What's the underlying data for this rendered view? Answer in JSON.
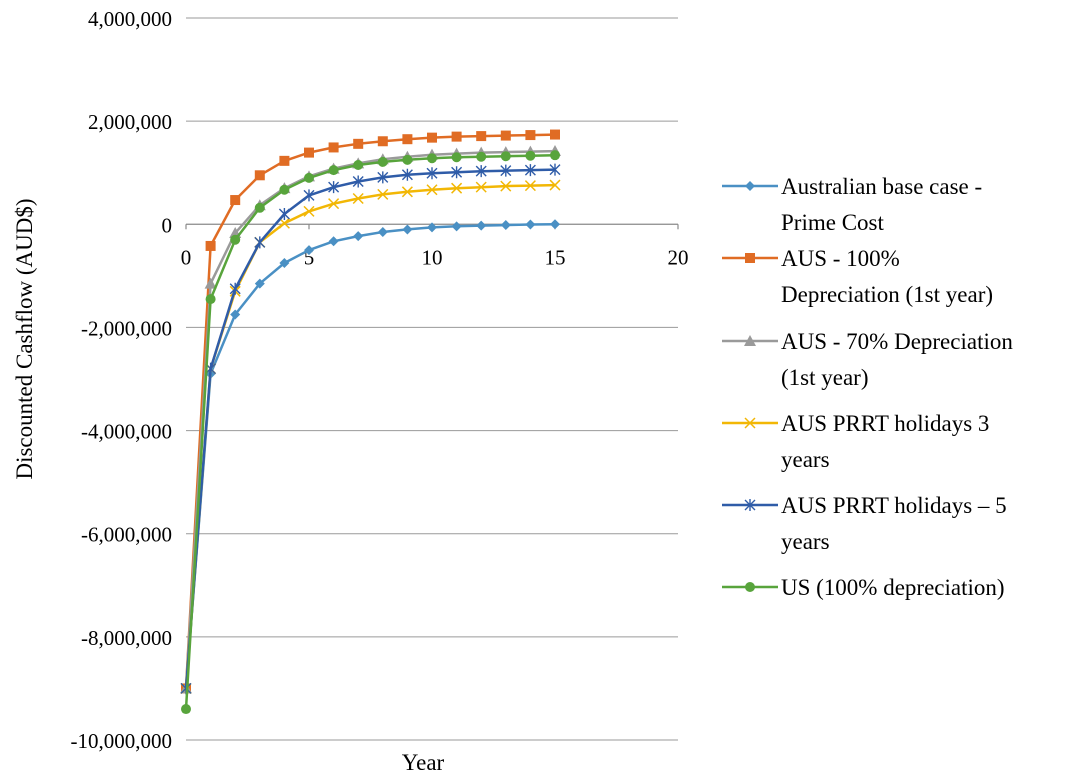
{
  "chart_data": {
    "type": "line",
    "title": "",
    "xlabel": "Year",
    "ylabel": "Discounted Cashflow (AUD$)",
    "xlim": [
      0,
      20
    ],
    "ylim": [
      -10000000,
      4000000
    ],
    "x_ticks": [
      0,
      5,
      10,
      15,
      20
    ],
    "x_tick_labels": [
      "0",
      "5",
      "10",
      "15",
      "20"
    ],
    "y_ticks": [
      -10000000,
      -8000000,
      -6000000,
      -4000000,
      -2000000,
      0,
      2000000,
      4000000
    ],
    "y_tick_labels": [
      "-10,000,000",
      "-8,000,000",
      "-6,000,000",
      "-4,000,000",
      "-2,000,000",
      "0",
      "2,000,000",
      "4,000,000"
    ],
    "grid": "horizontal",
    "legend_position": "right",
    "x": [
      0,
      1,
      2,
      3,
      4,
      5,
      6,
      7,
      8,
      9,
      10,
      11,
      12,
      13,
      14,
      15
    ],
    "series": [
      {
        "name": "Australian base case - Prime Cost",
        "legend_lines": [
          "Australian base case -",
          "Prime Cost"
        ],
        "color": "#4a90c4",
        "marker": "diamond",
        "values": [
          -9000000,
          -2900000,
          -1750000,
          -1150000,
          -750000,
          -500000,
          -330000,
          -230000,
          -150000,
          -100000,
          -60000,
          -40000,
          -25000,
          -15000,
          -5000,
          0
        ]
      },
      {
        "name": "AUS - 100% Depreciation (1st year)",
        "legend_lines": [
          "AUS - 100%",
          "Depreciation (1st year)"
        ],
        "color": "#e06c24",
        "marker": "square",
        "values": [
          -9000000,
          -420000,
          470000,
          950000,
          1230000,
          1390000,
          1490000,
          1560000,
          1610000,
          1650000,
          1680000,
          1700000,
          1710000,
          1720000,
          1730000,
          1740000
        ]
      },
      {
        "name": "AUS - 70% Depreciation (1st year)",
        "legend_lines": [
          "AUS - 70% Depreciation",
          "(1st year)"
        ],
        "color": "#9a9a9a",
        "marker": "triangle",
        "values": [
          -9000000,
          -1150000,
          -170000,
          370000,
          700000,
          930000,
          1080000,
          1180000,
          1260000,
          1310000,
          1350000,
          1370000,
          1390000,
          1400000,
          1410000,
          1420000
        ]
      },
      {
        "name": "AUS PRRT holidays 3 years",
        "legend_lines": [
          "AUS PRRT holidays    3",
          "years"
        ],
        "color": "#f2b705",
        "marker": "x",
        "values": [
          -9000000,
          -2800000,
          -1300000,
          -350000,
          20000,
          250000,
          400000,
          500000,
          580000,
          630000,
          670000,
          700000,
          720000,
          740000,
          750000,
          760000
        ]
      },
      {
        "name": "AUS PRRT holidays – 5 years",
        "legend_lines": [
          "AUS PRRT holidays – 5",
          "years"
        ],
        "color": "#2f5ca8",
        "marker": "star",
        "values": [
          -9000000,
          -2800000,
          -1250000,
          -350000,
          200000,
          560000,
          720000,
          830000,
          910000,
          960000,
          990000,
          1010000,
          1030000,
          1040000,
          1050000,
          1060000
        ]
      },
      {
        "name": "US (100% depreciation)",
        "legend_lines": [
          "US (100% depreciation)"
        ],
        "color": "#58a43c",
        "marker": "circle",
        "values": [
          -9400000,
          -1450000,
          -300000,
          320000,
          670000,
          900000,
          1050000,
          1150000,
          1210000,
          1250000,
          1280000,
          1300000,
          1310000,
          1320000,
          1330000,
          1340000
        ]
      }
    ]
  }
}
